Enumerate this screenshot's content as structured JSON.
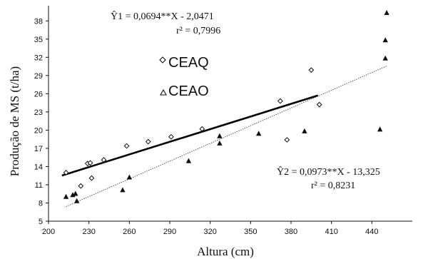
{
  "chart_data": {
    "type": "scatter",
    "xlabel": "Altura (cm)",
    "ylabel": "Produção de MS (t/ha)",
    "xlim": [
      200,
      470
    ],
    "ylim": [
      5,
      40.5
    ],
    "xticks": [
      200,
      230,
      260,
      290,
      320,
      350,
      380,
      410,
      440
    ],
    "yticks": [
      5,
      8,
      11,
      14,
      17,
      20,
      23,
      26,
      29,
      32,
      35,
      38
    ],
    "grid": false,
    "series": [
      {
        "name": "CEAQ",
        "marker": "diamond",
        "points": [
          [
            213,
            13.0
          ],
          [
            229,
            14.5
          ],
          [
            231,
            14.6
          ],
          [
            232,
            12.1
          ],
          [
            224,
            10.8
          ],
          [
            241,
            15.1
          ],
          [
            258,
            17.4
          ],
          [
            274,
            18.1
          ],
          [
            291,
            18.9
          ],
          [
            314,
            20.2
          ],
          [
            372,
            24.8
          ],
          [
            395,
            29.9
          ],
          [
            401,
            24.2
          ],
          [
            377,
            18.4
          ]
        ],
        "fit": {
          "equation": "Ŷ1 = 0,0694**X - 2,0471",
          "r2": "r² = 0,7996",
          "slope": 0.0694,
          "intercept": -2.0471,
          "x_range": [
            210,
            400
          ],
          "line_color": "#000000"
        }
      },
      {
        "name": "CEAO",
        "marker": "triangle",
        "points": [
          [
            213,
            9.0
          ],
          [
            218,
            9.3
          ],
          [
            220,
            9.5
          ],
          [
            221,
            8.3
          ],
          [
            255,
            10.1
          ],
          [
            260,
            12.2
          ],
          [
            304,
            14.9
          ],
          [
            327,
            19.0
          ],
          [
            327,
            17.8
          ],
          [
            356,
            19.4
          ],
          [
            390,
            19.8
          ],
          [
            446,
            20.1
          ],
          [
            450,
            31.8
          ],
          [
            450,
            34.8
          ],
          [
            451,
            39.3
          ]
        ],
        "fit": {
          "equation": "Ŷ2 = 0,0973**X - 13,325",
          "r2": "r² = 0,8231",
          "slope": 0.0973,
          "intercept": -13.325,
          "x_range": [
            213,
            451
          ],
          "line_color": "#555555"
        }
      }
    ],
    "legend": [
      {
        "marker": "diamond",
        "label": "CEAQ"
      },
      {
        "marker": "triangle",
        "label": "CEAO"
      }
    ]
  }
}
